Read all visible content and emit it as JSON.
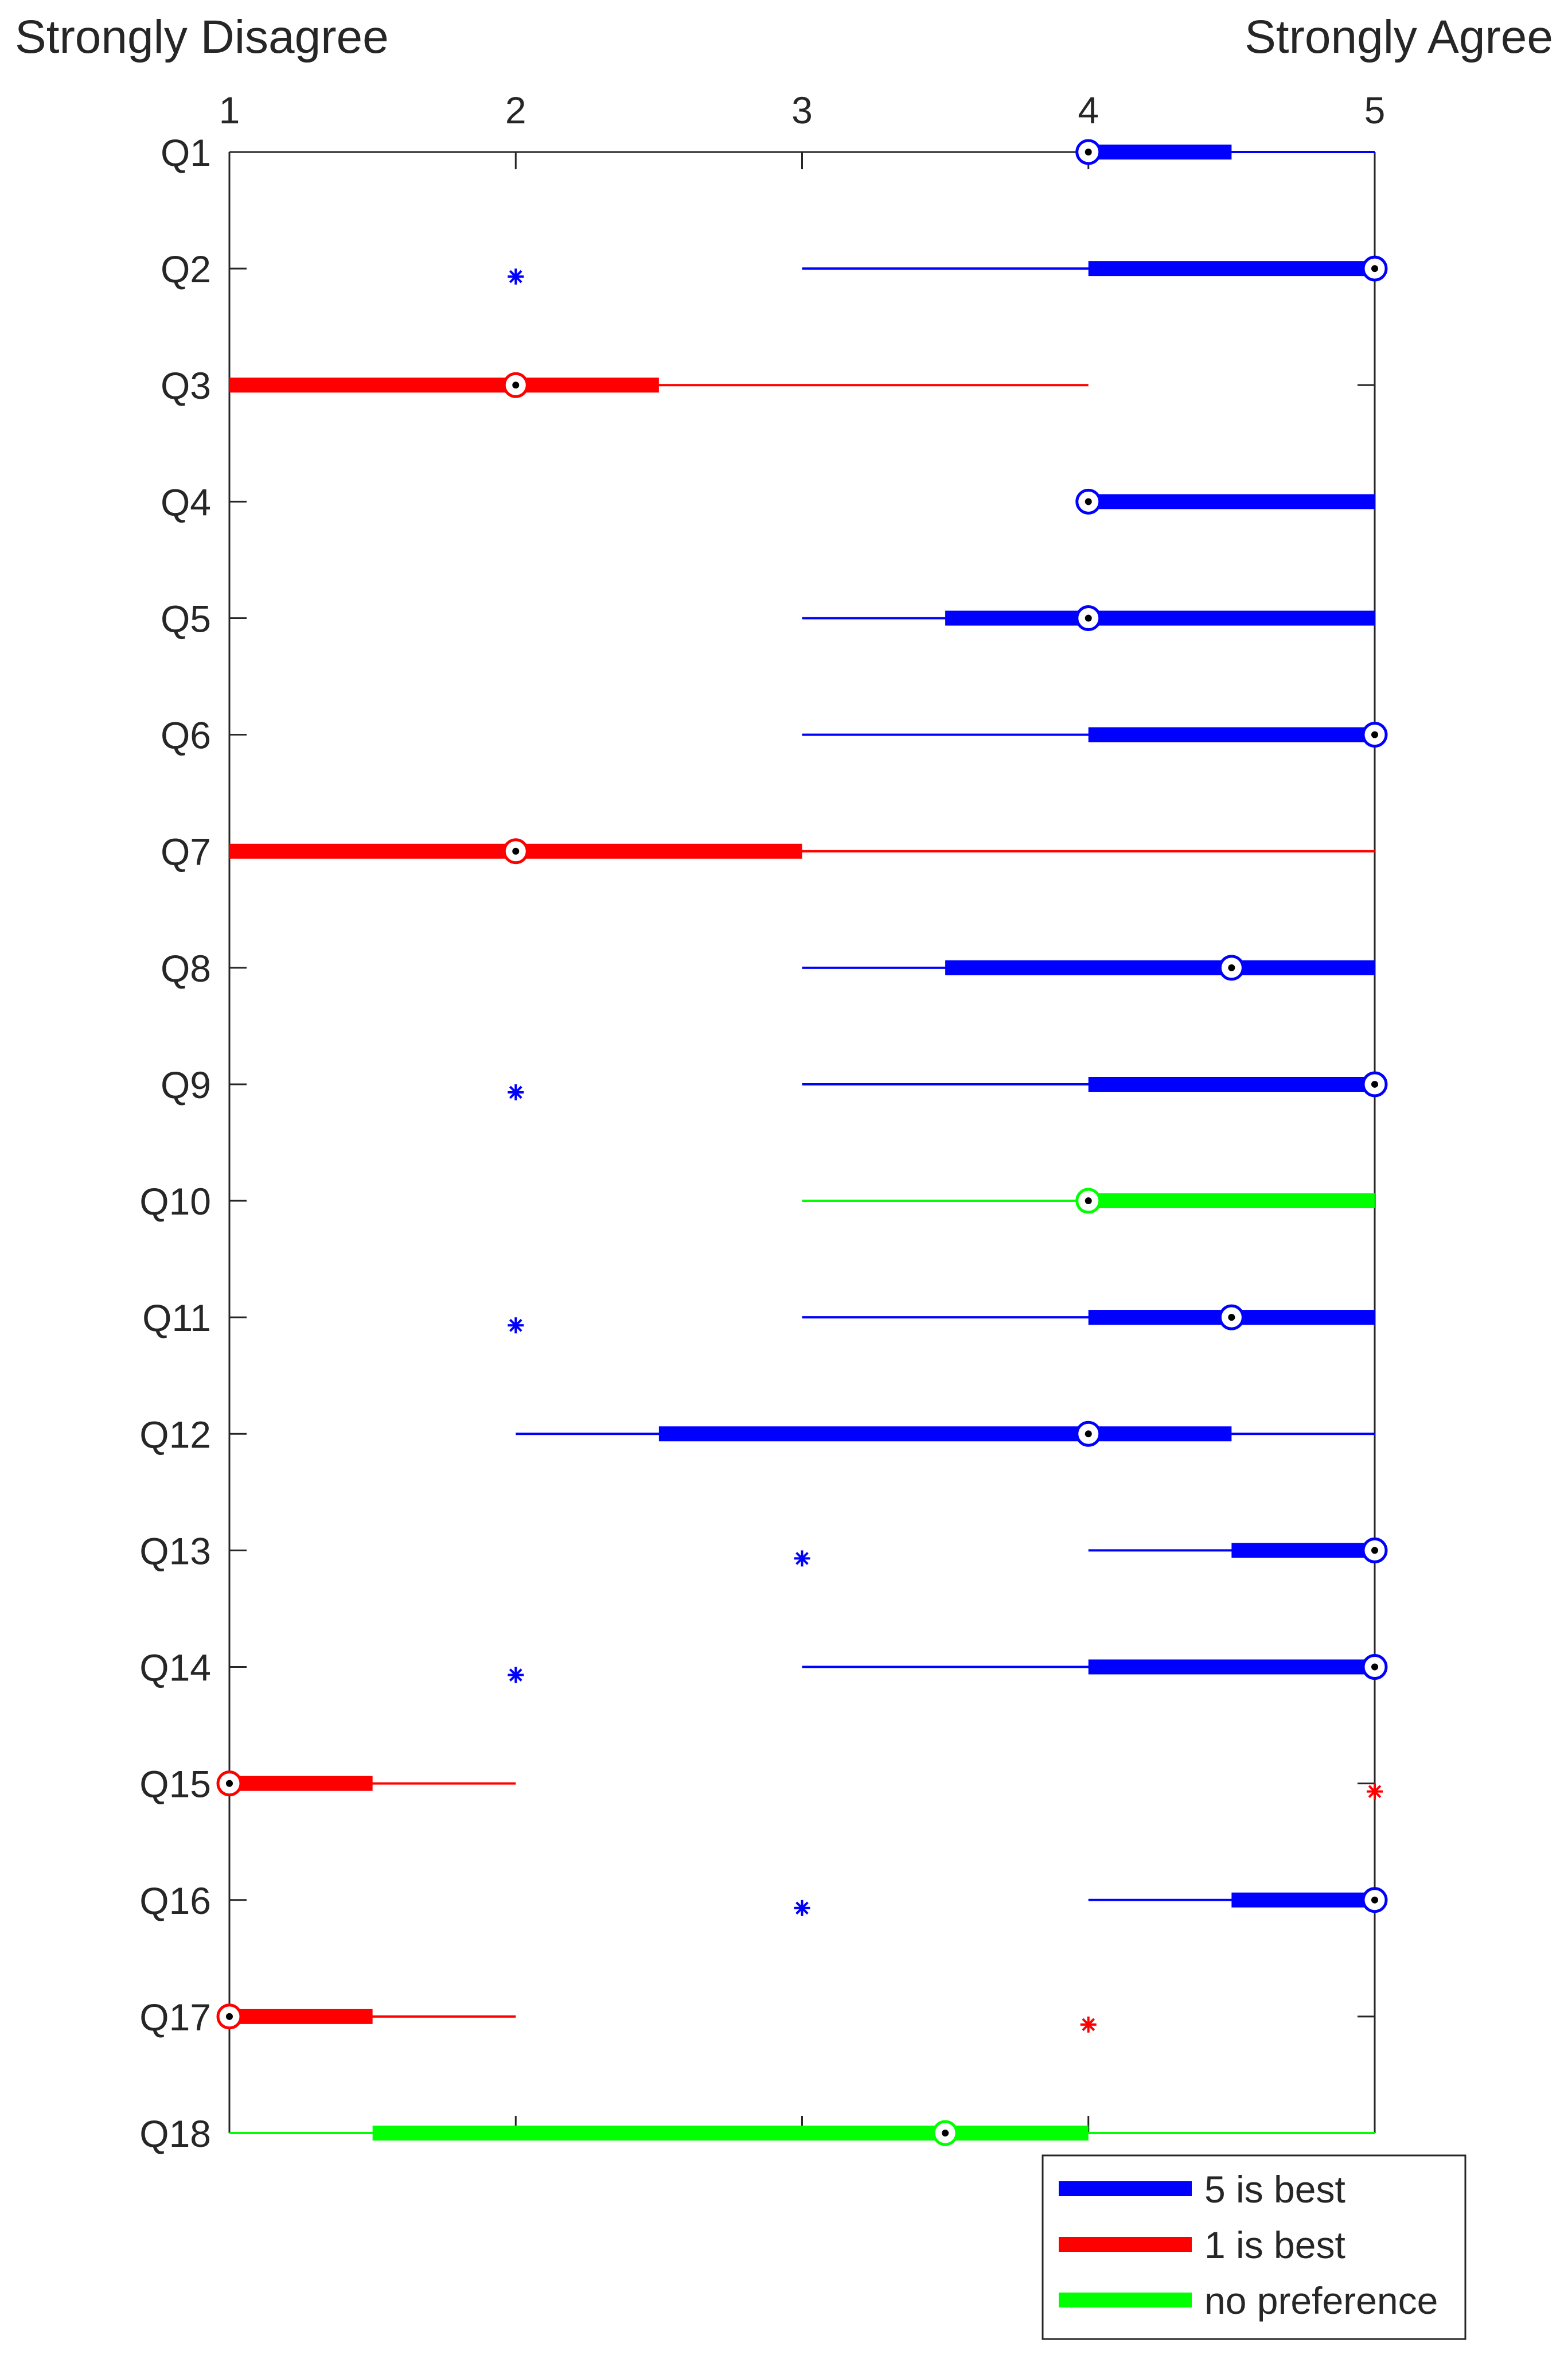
{
  "chart_data": {
    "type": "box",
    "orientation": "horizontal",
    "xlim": [
      1,
      5
    ],
    "xticks": [
      "1",
      "2",
      "3",
      "4",
      "5"
    ],
    "x_min_label": "Strongly Disagree",
    "x_max_label": "Strongly Agree",
    "categories": [
      "Q1",
      "Q2",
      "Q3",
      "Q4",
      "Q5",
      "Q6",
      "Q7",
      "Q8",
      "Q9",
      "Q10",
      "Q11",
      "Q12",
      "Q13",
      "Q14",
      "Q15",
      "Q16",
      "Q17",
      "Q18"
    ],
    "legend": {
      "position": "bottom-right",
      "entries": [
        {
          "label": "5 is best",
          "color": "#0000ff"
        },
        {
          "label": "1 is best",
          "color": "#ff0000"
        },
        {
          "label": "no preference",
          "color": "#00ff00"
        }
      ]
    },
    "boxes": [
      {
        "question": "Q1",
        "group": "5 is best",
        "whisker_low": 4,
        "q1": 4,
        "median": 4,
        "q3": 4.5,
        "whisker_high": 5,
        "outliers": []
      },
      {
        "question": "Q2",
        "group": "5 is best",
        "whisker_low": 3,
        "q1": 4,
        "median": 5,
        "q3": 5,
        "whisker_high": 5,
        "outliers": [
          2
        ]
      },
      {
        "question": "Q3",
        "group": "1 is best",
        "whisker_low": 1,
        "q1": 1,
        "median": 2,
        "q3": 2.5,
        "whisker_high": 4,
        "outliers": []
      },
      {
        "question": "Q4",
        "group": "5 is best",
        "whisker_low": 4,
        "q1": 4,
        "median": 4,
        "q3": 5,
        "whisker_high": 5,
        "outliers": []
      },
      {
        "question": "Q5",
        "group": "5 is best",
        "whisker_low": 3,
        "q1": 3.5,
        "median": 4,
        "q3": 5,
        "whisker_high": 5,
        "outliers": []
      },
      {
        "question": "Q6",
        "group": "5 is best",
        "whisker_low": 3,
        "q1": 4,
        "median": 5,
        "q3": 5,
        "whisker_high": 5,
        "outliers": []
      },
      {
        "question": "Q7",
        "group": "1 is best",
        "whisker_low": 1,
        "q1": 1,
        "median": 2,
        "q3": 3,
        "whisker_high": 5,
        "outliers": []
      },
      {
        "question": "Q8",
        "group": "5 is best",
        "whisker_low": 3,
        "q1": 3.5,
        "median": 4.5,
        "q3": 5,
        "whisker_high": 5,
        "outliers": []
      },
      {
        "question": "Q9",
        "group": "5 is best",
        "whisker_low": 3,
        "q1": 4,
        "median": 5,
        "q3": 5,
        "whisker_high": 5,
        "outliers": [
          2
        ]
      },
      {
        "question": "Q10",
        "group": "no preference",
        "whisker_low": 3,
        "q1": 4,
        "median": 4,
        "q3": 5,
        "whisker_high": 5,
        "outliers": []
      },
      {
        "question": "Q11",
        "group": "5 is best",
        "whisker_low": 3,
        "q1": 4,
        "median": 4.5,
        "q3": 5,
        "whisker_high": 5,
        "outliers": [
          2
        ]
      },
      {
        "question": "Q12",
        "group": "5 is best",
        "whisker_low": 2,
        "q1": 2.5,
        "median": 4,
        "q3": 4.5,
        "whisker_high": 5,
        "outliers": []
      },
      {
        "question": "Q13",
        "group": "5 is best",
        "whisker_low": 4,
        "q1": 4.5,
        "median": 5,
        "q3": 5,
        "whisker_high": 5,
        "outliers": [
          3
        ]
      },
      {
        "question": "Q14",
        "group": "5 is best",
        "whisker_low": 3,
        "q1": 4,
        "median": 5,
        "q3": 5,
        "whisker_high": 5,
        "outliers": [
          2
        ]
      },
      {
        "question": "Q15",
        "group": "1 is best",
        "whisker_low": 1,
        "q1": 1,
        "median": 1,
        "q3": 1.5,
        "whisker_high": 2,
        "outliers": [
          5
        ]
      },
      {
        "question": "Q16",
        "group": "5 is best",
        "whisker_low": 4,
        "q1": 4.5,
        "median": 5,
        "q3": 5,
        "whisker_high": 5,
        "outliers": [
          3
        ]
      },
      {
        "question": "Q17",
        "group": "1 is best",
        "whisker_low": 1,
        "q1": 1,
        "median": 1,
        "q3": 1.5,
        "whisker_high": 2,
        "outliers": [
          4
        ]
      },
      {
        "question": "Q18",
        "group": "no preference",
        "whisker_low": 1,
        "q1": 1.5,
        "median": 3.5,
        "q3": 4,
        "whisker_high": 5,
        "outliers": []
      }
    ]
  }
}
